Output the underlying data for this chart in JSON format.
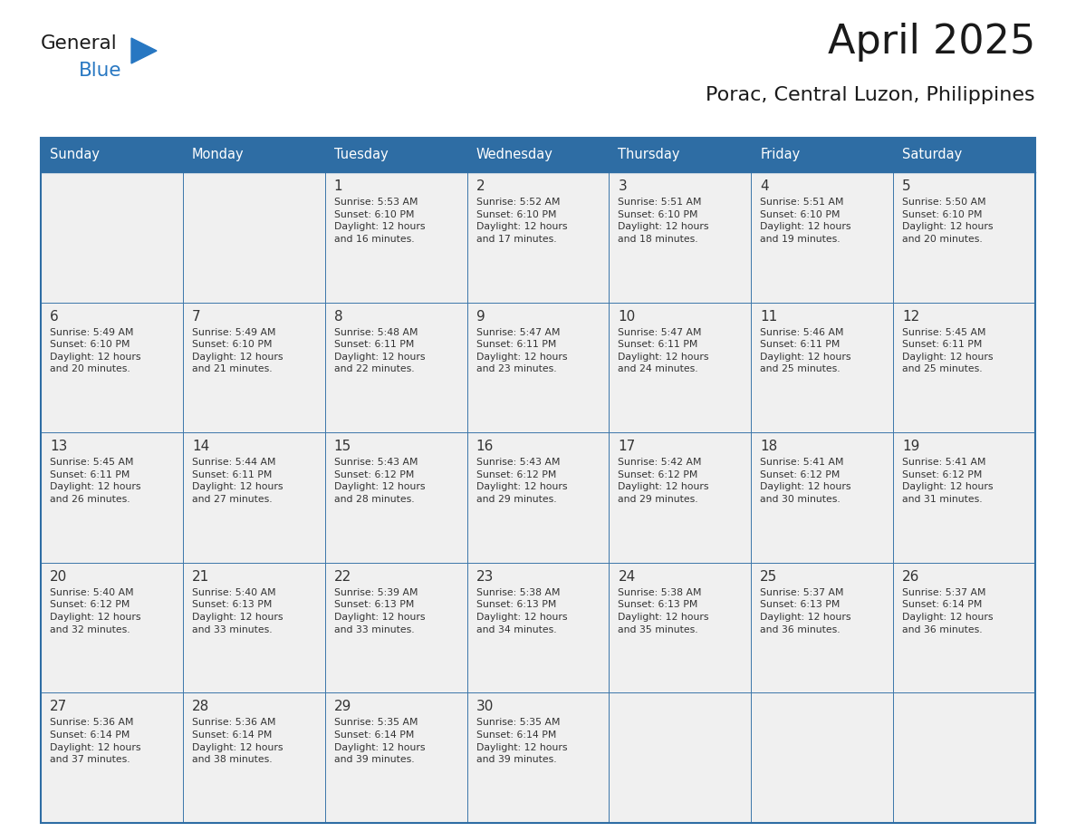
{
  "title": "April 2025",
  "subtitle": "Porac, Central Luzon, Philippines",
  "header_bg_color": "#2E6DA4",
  "header_text_color": "#FFFFFF",
  "cell_bg_color": "#F0F0F0",
  "title_color": "#1a1a1a",
  "subtitle_color": "#1a1a1a",
  "day_text_color": "#333333",
  "border_color": "#2E6DA4",
  "days_of_week": [
    "Sunday",
    "Monday",
    "Tuesday",
    "Wednesday",
    "Thursday",
    "Friday",
    "Saturday"
  ],
  "calendar": [
    [
      {
        "day": "",
        "info": ""
      },
      {
        "day": "",
        "info": ""
      },
      {
        "day": "1",
        "info": "Sunrise: 5:53 AM\nSunset: 6:10 PM\nDaylight: 12 hours\nand 16 minutes."
      },
      {
        "day": "2",
        "info": "Sunrise: 5:52 AM\nSunset: 6:10 PM\nDaylight: 12 hours\nand 17 minutes."
      },
      {
        "day": "3",
        "info": "Sunrise: 5:51 AM\nSunset: 6:10 PM\nDaylight: 12 hours\nand 18 minutes."
      },
      {
        "day": "4",
        "info": "Sunrise: 5:51 AM\nSunset: 6:10 PM\nDaylight: 12 hours\nand 19 minutes."
      },
      {
        "day": "5",
        "info": "Sunrise: 5:50 AM\nSunset: 6:10 PM\nDaylight: 12 hours\nand 20 minutes."
      }
    ],
    [
      {
        "day": "6",
        "info": "Sunrise: 5:49 AM\nSunset: 6:10 PM\nDaylight: 12 hours\nand 20 minutes."
      },
      {
        "day": "7",
        "info": "Sunrise: 5:49 AM\nSunset: 6:10 PM\nDaylight: 12 hours\nand 21 minutes."
      },
      {
        "day": "8",
        "info": "Sunrise: 5:48 AM\nSunset: 6:11 PM\nDaylight: 12 hours\nand 22 minutes."
      },
      {
        "day": "9",
        "info": "Sunrise: 5:47 AM\nSunset: 6:11 PM\nDaylight: 12 hours\nand 23 minutes."
      },
      {
        "day": "10",
        "info": "Sunrise: 5:47 AM\nSunset: 6:11 PM\nDaylight: 12 hours\nand 24 minutes."
      },
      {
        "day": "11",
        "info": "Sunrise: 5:46 AM\nSunset: 6:11 PM\nDaylight: 12 hours\nand 25 minutes."
      },
      {
        "day": "12",
        "info": "Sunrise: 5:45 AM\nSunset: 6:11 PM\nDaylight: 12 hours\nand 25 minutes."
      }
    ],
    [
      {
        "day": "13",
        "info": "Sunrise: 5:45 AM\nSunset: 6:11 PM\nDaylight: 12 hours\nand 26 minutes."
      },
      {
        "day": "14",
        "info": "Sunrise: 5:44 AM\nSunset: 6:11 PM\nDaylight: 12 hours\nand 27 minutes."
      },
      {
        "day": "15",
        "info": "Sunrise: 5:43 AM\nSunset: 6:12 PM\nDaylight: 12 hours\nand 28 minutes."
      },
      {
        "day": "16",
        "info": "Sunrise: 5:43 AM\nSunset: 6:12 PM\nDaylight: 12 hours\nand 29 minutes."
      },
      {
        "day": "17",
        "info": "Sunrise: 5:42 AM\nSunset: 6:12 PM\nDaylight: 12 hours\nand 29 minutes."
      },
      {
        "day": "18",
        "info": "Sunrise: 5:41 AM\nSunset: 6:12 PM\nDaylight: 12 hours\nand 30 minutes."
      },
      {
        "day": "19",
        "info": "Sunrise: 5:41 AM\nSunset: 6:12 PM\nDaylight: 12 hours\nand 31 minutes."
      }
    ],
    [
      {
        "day": "20",
        "info": "Sunrise: 5:40 AM\nSunset: 6:12 PM\nDaylight: 12 hours\nand 32 minutes."
      },
      {
        "day": "21",
        "info": "Sunrise: 5:40 AM\nSunset: 6:13 PM\nDaylight: 12 hours\nand 33 minutes."
      },
      {
        "day": "22",
        "info": "Sunrise: 5:39 AM\nSunset: 6:13 PM\nDaylight: 12 hours\nand 33 minutes."
      },
      {
        "day": "23",
        "info": "Sunrise: 5:38 AM\nSunset: 6:13 PM\nDaylight: 12 hours\nand 34 minutes."
      },
      {
        "day": "24",
        "info": "Sunrise: 5:38 AM\nSunset: 6:13 PM\nDaylight: 12 hours\nand 35 minutes."
      },
      {
        "day": "25",
        "info": "Sunrise: 5:37 AM\nSunset: 6:13 PM\nDaylight: 12 hours\nand 36 minutes."
      },
      {
        "day": "26",
        "info": "Sunrise: 5:37 AM\nSunset: 6:14 PM\nDaylight: 12 hours\nand 36 minutes."
      }
    ],
    [
      {
        "day": "27",
        "info": "Sunrise: 5:36 AM\nSunset: 6:14 PM\nDaylight: 12 hours\nand 37 minutes."
      },
      {
        "day": "28",
        "info": "Sunrise: 5:36 AM\nSunset: 6:14 PM\nDaylight: 12 hours\nand 38 minutes."
      },
      {
        "day": "29",
        "info": "Sunrise: 5:35 AM\nSunset: 6:14 PM\nDaylight: 12 hours\nand 39 minutes."
      },
      {
        "day": "30",
        "info": "Sunrise: 5:35 AM\nSunset: 6:14 PM\nDaylight: 12 hours\nand 39 minutes."
      },
      {
        "day": "",
        "info": ""
      },
      {
        "day": "",
        "info": ""
      },
      {
        "day": "",
        "info": ""
      }
    ]
  ],
  "logo_general_color": "#1a1a1a",
  "logo_blue_color": "#2777C2",
  "logo_triangle_color": "#2777C2"
}
